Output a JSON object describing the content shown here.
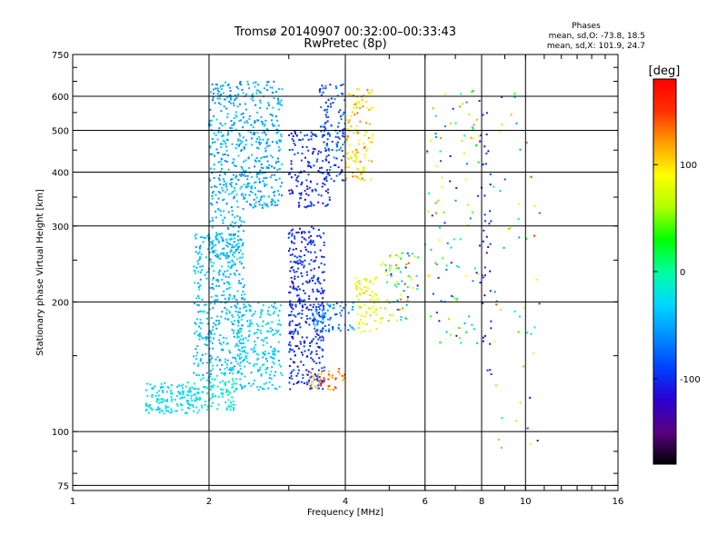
{
  "chart_data": {
    "type": "scatter",
    "title": "Tromsø 20140907 00:32:00–00:33:43",
    "subtitle": "RwPretec (8p)",
    "xlabel": "Frequency [MHz]",
    "ylabel": "Stationary phase Virtual Height [km]",
    "x_scale": "log",
    "y_scale": "log",
    "xlim": [
      1,
      16
    ],
    "ylim": [
      73,
      750
    ],
    "x_ticks": [
      1,
      2,
      4,
      6,
      8,
      10,
      16
    ],
    "y_ticks": [
      75,
      100,
      200,
      300,
      400,
      500,
      600,
      750
    ],
    "legend": {
      "title": "Phases",
      "lines": [
        "mean, sd,O: -73.8, 18.5",
        "mean, sd,X: 101.9, 24.7"
      ]
    },
    "colorbar": {
      "label": "[deg]",
      "ticks": [
        100,
        0,
        -100
      ],
      "range": [
        -180,
        180
      ],
      "colors": [
        "#000000",
        "#5a0080",
        "#2a00d0",
        "#0040ff",
        "#0090ff",
        "#00d8ff",
        "#00ffa0",
        "#00ff00",
        "#b0ff00",
        "#ffff00",
        "#ffa000",
        "#ff3000",
        "#ff0000"
      ]
    },
    "grid": true,
    "clusters": [
      {
        "x": [
          1.45,
          1.9
        ],
        "y": [
          110,
          130
        ],
        "n": 160,
        "phase": [
          -40,
          -10
        ]
      },
      {
        "x": [
          1.9,
          2.3
        ],
        "y": [
          112,
          135
        ],
        "n": 90,
        "phase": [
          -30,
          -5
        ]
      },
      {
        "x": [
          2.3,
          2.9
        ],
        "y": [
          125,
          200
        ],
        "n": 220,
        "phase": [
          -50,
          -15
        ]
      },
      {
        "x": [
          1.85,
          2.4
        ],
        "y": [
          135,
          290
        ],
        "n": 420,
        "phase": [
          -60,
          -20
        ]
      },
      {
        "x": [
          2.0,
          2.9
        ],
        "y": [
          330,
          650
        ],
        "n": 520,
        "phase": [
          -70,
          -30
        ]
      },
      {
        "x": [
          2.0,
          2.4
        ],
        "y": [
          250,
          330
        ],
        "n": 80,
        "phase": [
          -60,
          -25
        ]
      },
      {
        "x": [
          3.0,
          3.6
        ],
        "y": [
          125,
          300
        ],
        "n": 380,
        "phase": [
          -120,
          -80
        ]
      },
      {
        "x": [
          3.0,
          3.7
        ],
        "y": [
          330,
          500
        ],
        "n": 150,
        "phase": [
          -120,
          -80
        ]
      },
      {
        "x": [
          3.5,
          4.0
        ],
        "y": [
          380,
          650
        ],
        "n": 120,
        "phase": [
          -110,
          -60
        ]
      },
      {
        "x": [
          3.3,
          4.0
        ],
        "y": [
          125,
          140
        ],
        "n": 45,
        "phase": [
          100,
          160
        ]
      },
      {
        "x": [
          3.4,
          4.2
        ],
        "y": [
          170,
          200
        ],
        "n": 80,
        "phase": [
          -90,
          -40
        ]
      },
      {
        "x": [
          4.0,
          4.6
        ],
        "y": [
          380,
          630
        ],
        "n": 120,
        "phase": [
          60,
          140
        ]
      },
      {
        "x": [
          4.2,
          4.8
        ],
        "y": [
          170,
          230
        ],
        "n": 80,
        "phase": [
          60,
          110
        ]
      },
      {
        "x": [
          4.8,
          5.8
        ],
        "y": [
          180,
          260
        ],
        "n": 70,
        "phase": [
          -120,
          140
        ]
      },
      {
        "x": [
          6.0,
          7.9
        ],
        "y": [
          160,
          620
        ],
        "n": 110,
        "phase": [
          -120,
          130
        ]
      },
      {
        "x": [
          7.9,
          8.4
        ],
        "y": [
          130,
          600
        ],
        "n": 45,
        "phase": [
          -120,
          -90
        ]
      },
      {
        "x": [
          8.5,
          10.8
        ],
        "y": [
          90,
          620
        ],
        "n": 50,
        "phase": [
          -120,
          150
        ]
      }
    ]
  }
}
